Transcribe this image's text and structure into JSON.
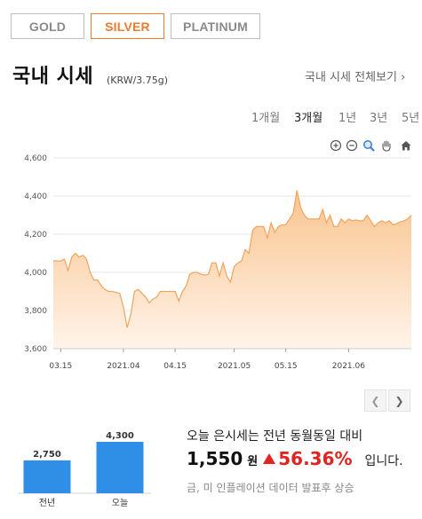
{
  "metal_tabs": [
    {
      "label": "GOLD",
      "active": false
    },
    {
      "label": "SILVER",
      "active": true
    },
    {
      "label": "PLATINUM",
      "active": false
    }
  ],
  "header": {
    "title": "국내 시세",
    "unit": "(KRW/3.75g)",
    "view_all": "국내 시세 전체보기 ›"
  },
  "periods": [
    {
      "label": "1개월",
      "active": false
    },
    {
      "label": "3개월",
      "active": true
    },
    {
      "label": "1년",
      "active": false
    },
    {
      "label": "3년",
      "active": false
    },
    {
      "label": "5년",
      "active": false
    }
  ],
  "toolbar_icons": [
    "zoom-in-icon",
    "zoom-out-icon",
    "magnifier-icon",
    "pan-hand-icon",
    "home-icon"
  ],
  "colors": {
    "accent": "#f07a2c",
    "line": "#f2a35a",
    "fill_top": "#f9c48e",
    "bar": "#2f8fe6",
    "up": "#e32222"
  },
  "chart_data": {
    "type": "area",
    "ylim": [
      3600,
      4600
    ],
    "yticks": [
      3600,
      3800,
      4000,
      4200,
      4400,
      4600
    ],
    "ytick_labels": [
      "3,600",
      "3,800",
      "4,000",
      "4,200",
      "4,400",
      "4,600"
    ],
    "xlim": [
      "2021-03-13",
      "2021-06-18"
    ],
    "xticks": [
      {
        "date": "2021-03-15",
        "label": "03.15"
      },
      {
        "date": "2021-04-01",
        "label": "2021.04"
      },
      {
        "date": "2021-04-15",
        "label": "04.15"
      },
      {
        "date": "2021-05-01",
        "label": "2021.05"
      },
      {
        "date": "2021-05-15",
        "label": "05.15"
      },
      {
        "date": "2021-06-01",
        "label": "2021.06"
      }
    ],
    "grid": true,
    "points": [
      [
        "2021-03-13",
        4060
      ],
      [
        "2021-03-14",
        4060
      ],
      [
        "2021-03-15",
        4060
      ],
      [
        "2021-03-16",
        4070
      ],
      [
        "2021-03-17",
        4010
      ],
      [
        "2021-03-18",
        4080
      ],
      [
        "2021-03-19",
        4100
      ],
      [
        "2021-03-20",
        4080
      ],
      [
        "2021-03-21",
        4090
      ],
      [
        "2021-03-22",
        4070
      ],
      [
        "2021-03-23",
        4000
      ],
      [
        "2021-03-24",
        3960
      ],
      [
        "2021-03-25",
        3960
      ],
      [
        "2021-03-26",
        3930
      ],
      [
        "2021-03-27",
        3910
      ],
      [
        "2021-03-28",
        3900
      ],
      [
        "2021-03-29",
        3900
      ],
      [
        "2021-03-30",
        3895
      ],
      [
        "2021-03-31",
        3890
      ],
      [
        "2021-04-01",
        3820
      ],
      [
        "2021-04-02",
        3710
      ],
      [
        "2021-04-03",
        3780
      ],
      [
        "2021-04-04",
        3900
      ],
      [
        "2021-04-05",
        3910
      ],
      [
        "2021-04-06",
        3890
      ],
      [
        "2021-04-07",
        3870
      ],
      [
        "2021-04-08",
        3840
      ],
      [
        "2021-04-09",
        3860
      ],
      [
        "2021-04-10",
        3870
      ],
      [
        "2021-04-11",
        3900
      ],
      [
        "2021-04-12",
        3900
      ],
      [
        "2021-04-13",
        3900
      ],
      [
        "2021-04-14",
        3900
      ],
      [
        "2021-04-15",
        3900
      ],
      [
        "2021-04-16",
        3850
      ],
      [
        "2021-04-17",
        3900
      ],
      [
        "2021-04-18",
        3930
      ],
      [
        "2021-04-19",
        3990
      ],
      [
        "2021-04-20",
        4000
      ],
      [
        "2021-04-21",
        4000
      ],
      [
        "2021-04-22",
        3990
      ],
      [
        "2021-04-23",
        3985
      ],
      [
        "2021-04-24",
        3990
      ],
      [
        "2021-04-25",
        4050
      ],
      [
        "2021-04-26",
        4050
      ],
      [
        "2021-04-27",
        3980
      ],
      [
        "2021-04-28",
        4050
      ],
      [
        "2021-04-29",
        3980
      ],
      [
        "2021-04-30",
        3950
      ],
      [
        "2021-05-01",
        4030
      ],
      [
        "2021-05-02",
        4050
      ],
      [
        "2021-05-03",
        4060
      ],
      [
        "2021-05-04",
        4120
      ],
      [
        "2021-05-05",
        4100
      ],
      [
        "2021-05-06",
        4220
      ],
      [
        "2021-05-07",
        4240
      ],
      [
        "2021-05-08",
        4240
      ],
      [
        "2021-05-09",
        4240
      ],
      [
        "2021-05-10",
        4180
      ],
      [
        "2021-05-11",
        4260
      ],
      [
        "2021-05-12",
        4210
      ],
      [
        "2021-05-13",
        4240
      ],
      [
        "2021-05-14",
        4250
      ],
      [
        "2021-05-15",
        4250
      ],
      [
        "2021-05-16",
        4280
      ],
      [
        "2021-05-17",
        4310
      ],
      [
        "2021-05-18",
        4430
      ],
      [
        "2021-05-19",
        4340
      ],
      [
        "2021-05-20",
        4300
      ],
      [
        "2021-05-21",
        4280
      ],
      [
        "2021-05-22",
        4280
      ],
      [
        "2021-05-23",
        4280
      ],
      [
        "2021-05-24",
        4280
      ],
      [
        "2021-05-25",
        4330
      ],
      [
        "2021-05-26",
        4260
      ],
      [
        "2021-05-27",
        4300
      ],
      [
        "2021-05-28",
        4240
      ],
      [
        "2021-05-29",
        4240
      ],
      [
        "2021-05-30",
        4280
      ],
      [
        "2021-05-31",
        4260
      ],
      [
        "2021-06-01",
        4280
      ],
      [
        "2021-06-02",
        4270
      ],
      [
        "2021-06-03",
        4275
      ],
      [
        "2021-06-04",
        4270
      ],
      [
        "2021-06-05",
        4270
      ],
      [
        "2021-06-06",
        4300
      ],
      [
        "2021-06-07",
        4270
      ],
      [
        "2021-06-08",
        4240
      ],
      [
        "2021-06-09",
        4260
      ],
      [
        "2021-06-10",
        4270
      ],
      [
        "2021-06-11",
        4260
      ],
      [
        "2021-06-12",
        4270
      ],
      [
        "2021-06-13",
        4250
      ],
      [
        "2021-06-14",
        4255
      ],
      [
        "2021-06-15",
        4265
      ],
      [
        "2021-06-16",
        4270
      ],
      [
        "2021-06-17",
        4280
      ],
      [
        "2021-06-18",
        4300
      ]
    ]
  },
  "compare_chart": {
    "type": "bar",
    "categories": [
      "전년",
      "오늘"
    ],
    "values": [
      2750,
      4300
    ],
    "value_labels": [
      "2,750",
      "4,300"
    ]
  },
  "summary": {
    "line1": "오늘 은시세는 전년 동월동일 대비",
    "diff": "1,550",
    "won": "원",
    "pct": "56.36%",
    "tail": "입니다.",
    "note": "금, 미 인플레이션 데이터 발표후 상승"
  }
}
